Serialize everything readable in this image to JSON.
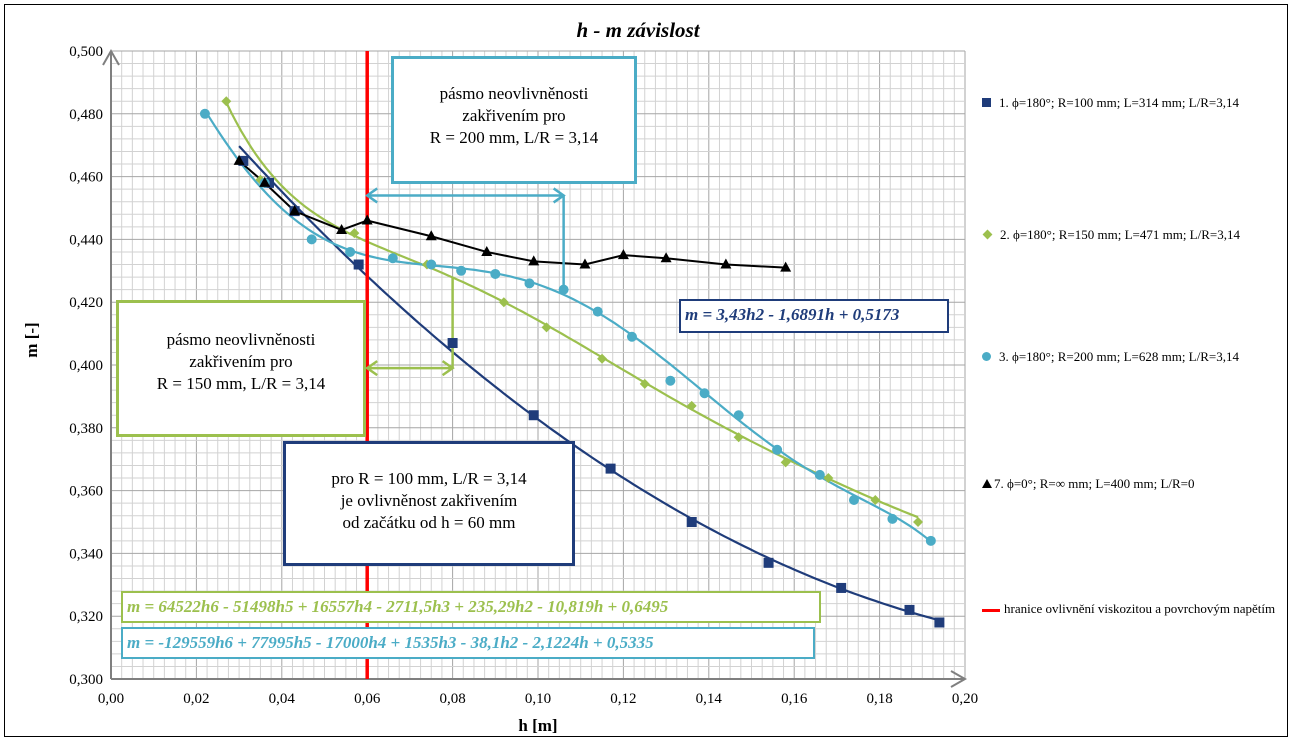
{
  "chart_data": {
    "type": "scatter",
    "title": "h - m závislost",
    "xlabel": "h [m]",
    "ylabel": "m [-]",
    "xlim": [
      0,
      0.2
    ],
    "ylim": [
      0.3,
      0.5
    ],
    "x_ticks": [
      "0,00",
      "0,02",
      "0,04",
      "0,06",
      "0,08",
      "0,10",
      "0,12",
      "0,14",
      "0,16",
      "0,18",
      "0,20"
    ],
    "y_ticks": [
      "0,300",
      "0,320",
      "0,340",
      "0,360",
      "0,380",
      "0,400",
      "0,420",
      "0,440",
      "0,460",
      "0,480",
      "0,500"
    ],
    "grid": true,
    "legend_position": "right",
    "series": [
      {
        "name": "1. ϕ=180°; R=100 mm;  L=314 mm; L/R=3,14",
        "color": "#1f3c7a",
        "marker": "square",
        "x": [
          0.031,
          0.037,
          0.043,
          0.058,
          0.08,
          0.099,
          0.117,
          0.136,
          0.154,
          0.171,
          0.187,
          0.194
        ],
        "y": [
          0.465,
          0.458,
          0.449,
          0.432,
          0.407,
          0.384,
          0.367,
          0.35,
          0.337,
          0.329,
          0.322,
          0.318
        ],
        "fit": [
          3.43,
          -1.6891,
          0.5173
        ]
      },
      {
        "name": "2. ϕ=180°; R=150 mm;  L=471 mm; L/R=3,14",
        "color": "#9cc04e",
        "marker": "diamond",
        "x": [
          0.027,
          0.035,
          0.057,
          0.074,
          0.092,
          0.102,
          0.115,
          0.125,
          0.136,
          0.147,
          0.158,
          0.168,
          0.179,
          0.189
        ],
        "y": [
          0.484,
          0.459,
          0.442,
          0.432,
          0.42,
          0.412,
          0.402,
          0.394,
          0.387,
          0.377,
          0.369,
          0.364,
          0.357,
          0.35
        ],
        "fit": [
          64522,
          -51498,
          16557,
          -2711.5,
          235.29,
          -10.819,
          0.6495
        ]
      },
      {
        "name": "3. ϕ=180°; R=200 mm;  L=628 mm; L/R=3,14",
        "color": "#4bacc6",
        "marker": "circle",
        "x": [
          0.022,
          0.036,
          0.047,
          0.056,
          0.066,
          0.075,
          0.082,
          0.09,
          0.098,
          0.106,
          0.114,
          0.122,
          0.131,
          0.139,
          0.147,
          0.156,
          0.166,
          0.174,
          0.183,
          0.192
        ],
        "y": [
          0.48,
          0.458,
          0.44,
          0.436,
          0.434,
          0.432,
          0.43,
          0.429,
          0.426,
          0.424,
          0.417,
          0.409,
          0.395,
          0.391,
          0.384,
          0.373,
          0.365,
          0.357,
          0.351,
          0.344
        ],
        "fit": [
          -129559,
          77995,
          -17000,
          1535,
          -38.1,
          -2.1224,
          0.5335
        ]
      },
      {
        "name": "7. ϕ=0°; R=∞ mm;  L=400 mm; L/R=0",
        "color": "#000000",
        "marker": "triangle",
        "x": [
          0.03,
          0.036,
          0.043,
          0.054,
          0.06,
          0.075,
          0.088,
          0.099,
          0.111,
          0.12,
          0.13,
          0.144,
          0.158
        ],
        "y": [
          0.465,
          0.458,
          0.449,
          0.443,
          0.446,
          0.441,
          0.436,
          0.433,
          0.432,
          0.435,
          0.434,
          0.432,
          0.431
        ]
      },
      {
        "name": "hranice ovlivnění viskozitou a povrchovým napětím",
        "color": "#ff0000",
        "marker": "none",
        "x": [
          0.06,
          0.06
        ],
        "y": [
          0.3,
          0.5
        ]
      }
    ],
    "annotations": {
      "box_r200": [
        "pásmo neovlivněnosti",
        "zakřivením  pro",
        "R = 200 mm, L/R = 3,14"
      ],
      "box_r150": [
        "pásmo neovlivněnosti",
        "zakřivením  pro",
        "R = 150 mm, L/R = 3,14"
      ],
      "box_r100": [
        "pro R = 100 mm, L/R = 3,14",
        "je ovlivněnost zakřivením",
        "od začátku od h = 60 mm"
      ],
      "eq_series1": "m = 3,43h2 - 1,6891h + 0,5173",
      "eq_series2": "m = 64522h6 - 51498h5 + 16557h4 - 2711,5h3 + 235,29h2 - 10,819h + 0,6495",
      "eq_series3": "m = -129559h6 + 77995h5 - 17000h4 + 1535h3 - 38,1h2 - 2,1224h + 0,5335"
    }
  }
}
